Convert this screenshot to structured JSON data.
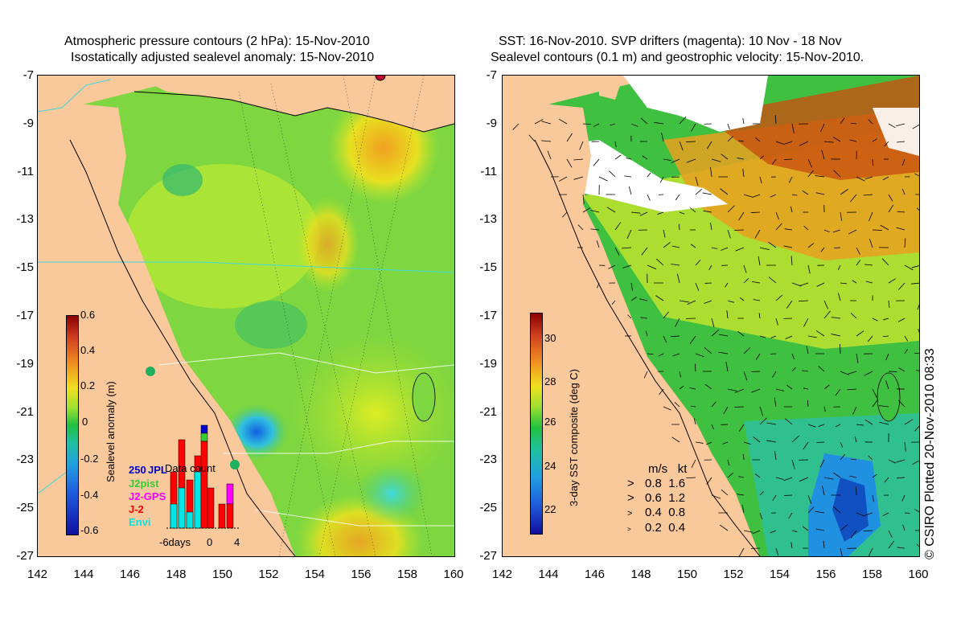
{
  "left": {
    "title_line1": "Atmospheric pressure contours (2 hPa): 15-Nov-2010",
    "title_line2": "Isostatically adjusted sealevel anomaly: 15-Nov-2010",
    "colorbar_label": "Sealevel anomaly (m)",
    "colorbar_ticks": [
      "0.6",
      "0.4",
      "0.2",
      "0",
      "-0.2",
      "-0.4",
      "-0.6"
    ],
    "inset": {
      "title": "Data count",
      "count_value": "250",
      "legend": [
        "JPL",
        "J2pist",
        "J2-GPS",
        "J-2",
        "Envi"
      ],
      "legend_colors": [
        "#0000cc",
        "#33cc33",
        "#ff00ff",
        "#ff0000",
        "#00e5e5"
      ],
      "x_labels": [
        "-6days",
        "0",
        "4"
      ]
    }
  },
  "right": {
    "title_line1": "SST: 16-Nov-2010. SVP drifters (magenta): 10 Nov - 18 Nov",
    "title_line2": "Sealevel contours (0.1 m) and geostrophic velocity: 15-Nov-2010.",
    "colorbar_label": "3-day SST composite (deg C)",
    "colorbar_ticks": [
      "30",
      "28",
      "26",
      "24",
      "22"
    ],
    "velocity_legend": {
      "header_ms": "m/s",
      "header_kt": "kt",
      "rows": [
        {
          "ms": "0.8",
          "kt": "1.6"
        },
        {
          "ms": "0.6",
          "kt": "1.2"
        },
        {
          "ms": "0.4",
          "kt": "0.8"
        },
        {
          "ms": "0.2",
          "kt": "0.4"
        }
      ]
    }
  },
  "axes": {
    "y_ticks": [
      "-7",
      "-9",
      "-11",
      "-13",
      "-15",
      "-17",
      "-19",
      "-21",
      "-23",
      "-25",
      "-27"
    ],
    "x_ticks": [
      "142",
      "144",
      "146",
      "148",
      "150",
      "152",
      "154",
      "156",
      "158",
      "160"
    ]
  },
  "credit": "© CSIRO Plotted 20-Nov-2010 08:33",
  "colors": {
    "land": "#f9c89b",
    "ocean_green": "#5cd65c",
    "ocean_yellow": "#d9f020",
    "orange": "#f0a020",
    "cyan": "#40d8e0",
    "blue": "#2080e0"
  }
}
